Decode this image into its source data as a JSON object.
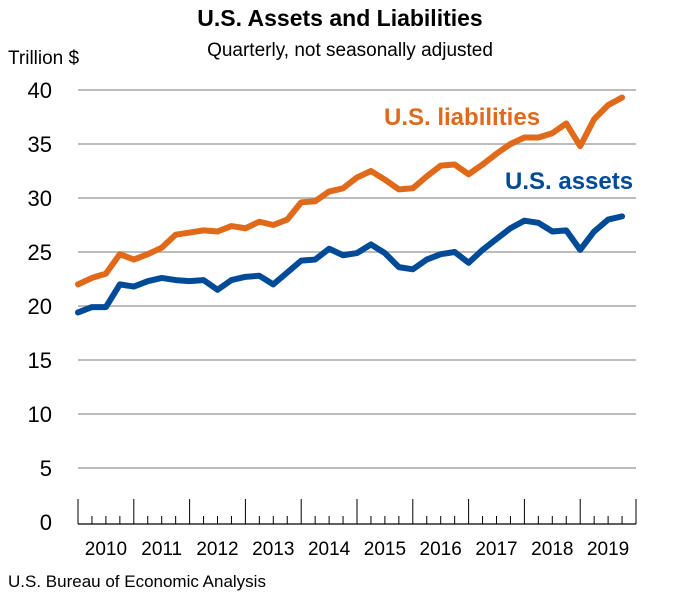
{
  "chart_data": {
    "type": "line",
    "title": "U.S. Assets and Liabilities",
    "subtitle": "Quarterly, not seasonally adjusted",
    "ylabel": "Trillion $",
    "xlabel": "",
    "ylim": [
      0,
      40
    ],
    "yticks": [
      0,
      5,
      10,
      15,
      20,
      25,
      30,
      35,
      40
    ],
    "grid": true,
    "year_labels": [
      "2010",
      "2011",
      "2012",
      "2013",
      "2014",
      "2015",
      "2016",
      "2017",
      "2018",
      "2019"
    ],
    "quarters_per_year": 4,
    "series": [
      {
        "name": "U.S. liabilities",
        "color": "#E0691A",
        "values": [
          22.0,
          22.6,
          23.0,
          24.8,
          24.3,
          24.8,
          25.4,
          26.6,
          26.8,
          27.0,
          26.9,
          27.4,
          27.2,
          27.8,
          27.5,
          28.0,
          29.6,
          29.7,
          30.6,
          30.9,
          31.9,
          32.5,
          31.7,
          30.8,
          30.9,
          32.0,
          33.0,
          33.1,
          32.2,
          33.1,
          34.1,
          35.0,
          35.6,
          35.6,
          36.0,
          36.9,
          34.8,
          37.3,
          38.6,
          39.3
        ]
      },
      {
        "name": "U.S. assets",
        "color": "#004B98",
        "values": [
          19.4,
          19.9,
          19.9,
          22.0,
          21.8,
          22.3,
          22.6,
          22.4,
          22.3,
          22.4,
          21.5,
          22.4,
          22.7,
          22.8,
          22.0,
          23.1,
          24.2,
          24.3,
          25.3,
          24.7,
          24.9,
          25.7,
          24.9,
          23.6,
          23.4,
          24.3,
          24.8,
          25.0,
          24.0,
          25.2,
          26.2,
          27.2,
          27.9,
          27.7,
          26.9,
          27.0,
          25.2,
          26.9,
          28.0,
          28.3
        ]
      }
    ],
    "source": "U.S. Bureau of Economic Analysis"
  }
}
